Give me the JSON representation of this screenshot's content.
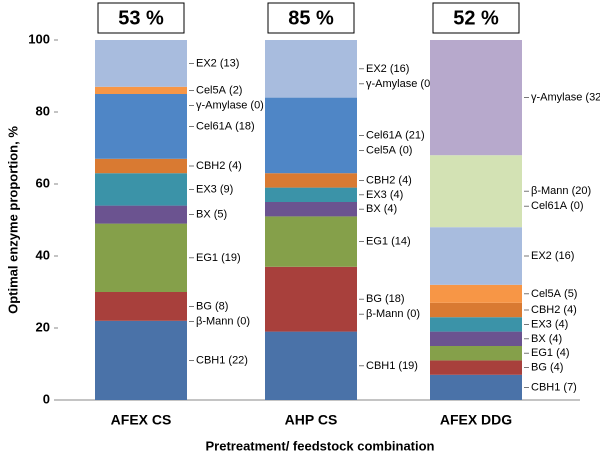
{
  "chart_data": {
    "type": "stacked-bar",
    "ylabel": "Optimal enzyme proportion, %",
    "xlabel": "Pretreatment/ feedstock combination",
    "ylim": [
      0,
      100
    ],
    "yticks": [
      0,
      20,
      40,
      60,
      80,
      100
    ],
    "categories": [
      "AFEX CS",
      "AHP CS",
      "AFEX DDG"
    ],
    "top_labels": [
      "53 %",
      "85 %",
      "52 %"
    ],
    "stacks": [
      [
        {
          "name": "CBH1",
          "value": 22,
          "value_label": "(22)",
          "color": "#4a72a8"
        },
        {
          "name": "β-Mann",
          "value": 0,
          "value_label": "(0)",
          "color": "#d3e2b4"
        },
        {
          "name": "BG",
          "value": 8,
          "value_label": "(8)",
          "color": "#a8403c"
        },
        {
          "name": "EG1",
          "value": 19,
          "value_label": "(19)",
          "color": "#85a04a"
        },
        {
          "name": "BX",
          "value": 5,
          "value_label": "(5)",
          "color": "#6b5390"
        },
        {
          "name": "EX3",
          "value": 9,
          "value_label": "(9)",
          "color": "#3b93a8"
        },
        {
          "name": "CBH2",
          "value": 4,
          "value_label": "(4)",
          "color": "#d97a32"
        },
        {
          "name": "Cel61A",
          "value": 18,
          "value_label": "(18)",
          "color": "#4f86c6"
        },
        {
          "name": "γ-Amylase",
          "value": 0,
          "value_label": "(0)",
          "color": "#b7a9cc"
        },
        {
          "name": "Cel5A",
          "value": 2,
          "value_label": "(2)",
          "color": "#f79646"
        },
        {
          "name": "EX2",
          "value": 13,
          "value_label": "(13)",
          "color": "#a8bcde"
        }
      ],
      [
        {
          "name": "CBH1",
          "value": 19,
          "value_label": "(19)",
          "color": "#4a72a8"
        },
        {
          "name": "β-Mann",
          "value": 0,
          "value_label": "(0)",
          "color": "#d3e2b4"
        },
        {
          "name": "BG",
          "value": 18,
          "value_label": "(18)",
          "color": "#a8403c"
        },
        {
          "name": "EG1",
          "value": 14,
          "value_label": "(14)",
          "color": "#85a04a"
        },
        {
          "name": "BX",
          "value": 4,
          "value_label": "(4)",
          "color": "#6b5390"
        },
        {
          "name": "EX3",
          "value": 4,
          "value_label": "(4)",
          "color": "#3b93a8"
        },
        {
          "name": "CBH2",
          "value": 4,
          "value_label": "(4)",
          "color": "#d97a32"
        },
        {
          "name": "Cel5A",
          "value": 0,
          "value_label": "(0)",
          "color": "#f79646"
        },
        {
          "name": "Cel61A",
          "value": 21,
          "value_label": "(21)",
          "color": "#4f86c6"
        },
        {
          "name": "γ-Amylase",
          "value": 0,
          "value_label": "(0)",
          "color": "#b7a9cc"
        },
        {
          "name": "EX2",
          "value": 16,
          "value_label": "(16)",
          "color": "#a8bcde"
        }
      ],
      [
        {
          "name": "CBH1",
          "value": 7,
          "value_label": "(7)",
          "color": "#4a72a8"
        },
        {
          "name": "BG",
          "value": 4,
          "value_label": "(4)",
          "color": "#a8403c"
        },
        {
          "name": "EG1",
          "value": 4,
          "value_label": "(4)",
          "color": "#85a04a"
        },
        {
          "name": "BX",
          "value": 4,
          "value_label": "(4)",
          "color": "#6b5390"
        },
        {
          "name": "EX3",
          "value": 4,
          "value_label": "(4)",
          "color": "#3b93a8"
        },
        {
          "name": "CBH2",
          "value": 4,
          "value_label": "(4)",
          "color": "#d97a32"
        },
        {
          "name": "Cel5A",
          "value": 5,
          "value_label": "(5)",
          "color": "#f79646"
        },
        {
          "name": "EX2",
          "value": 16,
          "value_label": "(16)",
          "color": "#a8bcde"
        },
        {
          "name": "Cel61A",
          "value": 0,
          "value_label": "(0)",
          "color": "#4f86c6"
        },
        {
          "name": "β-Mann",
          "value": 20,
          "value_label": "(20)",
          "color": "#d3e2b4"
        },
        {
          "name": "γ-Amylase",
          "value": 32,
          "value_label": "(32)",
          "color": "#b7a9cc"
        }
      ]
    ]
  }
}
